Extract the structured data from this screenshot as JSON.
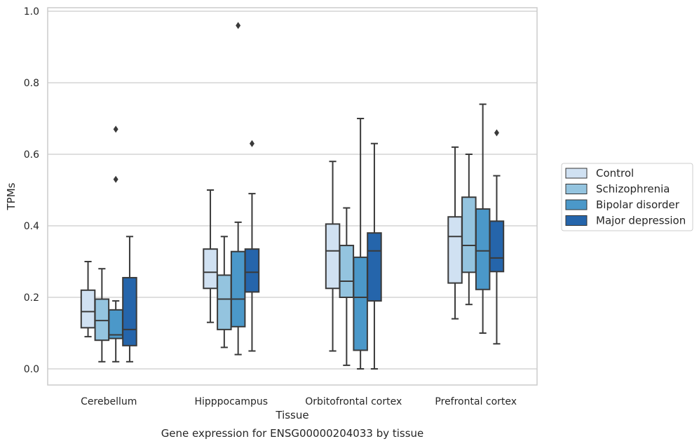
{
  "chart_data": {
    "type": "box",
    "caption": "Gene expression for ENSG00000204033 by tissue",
    "xlabel": "Tissue",
    "ylabel": "TPMs",
    "ylim": [
      -0.045,
      1.01
    ],
    "yticks": [
      "0.0",
      "0.2",
      "0.4",
      "0.6",
      "0.8",
      "1.0"
    ],
    "grid": true,
    "legend_position": "right",
    "categories": [
      "Cerebellum",
      "Hipppocampus",
      "Orbitofrontal cortex",
      "Prefrontal cortex"
    ],
    "series": [
      {
        "name": "Control",
        "color": "#d0e1f2",
        "boxes": [
          {
            "whislo": 0.09,
            "q1": 0.115,
            "med": 0.16,
            "q3": 0.22,
            "whishi": 0.3,
            "fliers": []
          },
          {
            "whislo": 0.13,
            "q1": 0.225,
            "med": 0.27,
            "q3": 0.335,
            "whishi": 0.5,
            "fliers": []
          },
          {
            "whislo": 0.05,
            "q1": 0.225,
            "med": 0.33,
            "q3": 0.405,
            "whishi": 0.58,
            "fliers": []
          },
          {
            "whislo": 0.14,
            "q1": 0.24,
            "med": 0.37,
            "q3": 0.425,
            "whishi": 0.62,
            "fliers": []
          }
        ]
      },
      {
        "name": "Schizophrenia",
        "color": "#94c4df",
        "boxes": [
          {
            "whislo": 0.02,
            "q1": 0.08,
            "med": 0.135,
            "q3": 0.195,
            "whishi": 0.28,
            "fliers": []
          },
          {
            "whislo": 0.06,
            "q1": 0.11,
            "med": 0.195,
            "q3": 0.262,
            "whishi": 0.37,
            "fliers": []
          },
          {
            "whislo": 0.01,
            "q1": 0.2,
            "med": 0.245,
            "q3": 0.345,
            "whishi": 0.45,
            "fliers": []
          },
          {
            "whislo": 0.18,
            "q1": 0.27,
            "med": 0.345,
            "q3": 0.48,
            "whishi": 0.6,
            "fliers": []
          }
        ]
      },
      {
        "name": "Bipolar disorder",
        "color": "#4b98c9",
        "boxes": [
          {
            "whislo": 0.02,
            "q1": 0.085,
            "med": 0.095,
            "q3": 0.165,
            "whishi": 0.19,
            "fliers": [
              0.53,
              0.67
            ]
          },
          {
            "whislo": 0.04,
            "q1": 0.118,
            "med": 0.195,
            "q3": 0.328,
            "whishi": 0.41,
            "fliers": [
              0.96
            ]
          },
          {
            "whislo": 0.0,
            "q1": 0.052,
            "med": 0.2,
            "q3": 0.312,
            "whishi": 0.7,
            "fliers": []
          },
          {
            "whislo": 0.1,
            "q1": 0.222,
            "med": 0.33,
            "q3": 0.447,
            "whishi": 0.74,
            "fliers": []
          }
        ]
      },
      {
        "name": "Major depression",
        "color": "#2565ab",
        "boxes": [
          {
            "whislo": 0.02,
            "q1": 0.065,
            "med": 0.11,
            "q3": 0.255,
            "whishi": 0.37,
            "fliers": []
          },
          {
            "whislo": 0.05,
            "q1": 0.215,
            "med": 0.27,
            "q3": 0.335,
            "whishi": 0.49,
            "fliers": [
              0.63
            ]
          },
          {
            "whislo": 0.0,
            "q1": 0.19,
            "med": 0.33,
            "q3": 0.38,
            "whishi": 0.63,
            "fliers": []
          },
          {
            "whislo": 0.07,
            "q1": 0.272,
            "med": 0.31,
            "q3": 0.413,
            "whishi": 0.54,
            "fliers": [
              0.66
            ]
          }
        ]
      }
    ]
  }
}
